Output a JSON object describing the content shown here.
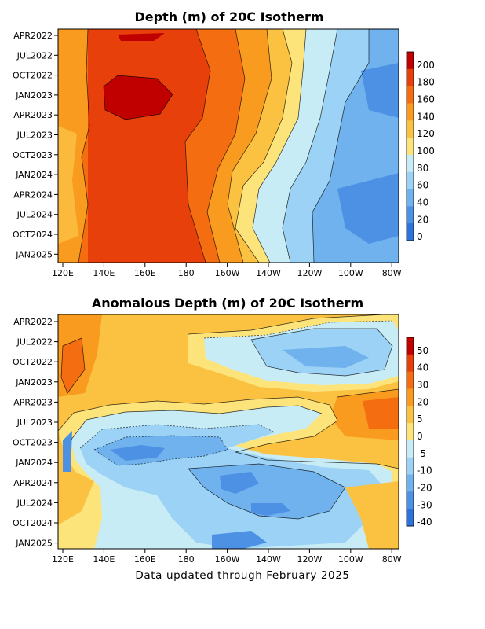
{
  "chart_data": [
    {
      "type": "heatmap",
      "title": "Depth (m) of 20C Isotherm",
      "xlabel": "",
      "ylabel": "",
      "x_ticks": [
        "120E",
        "140E",
        "160E",
        "180",
        "160W",
        "140W",
        "120W",
        "100W",
        "80W"
      ],
      "y_ticks": [
        "APR2022",
        "JUL2022",
        "OCT2022",
        "JAN2023",
        "APR2023",
        "JUL2023",
        "OCT2023",
        "JAN2024",
        "APR2024",
        "JUL2024",
        "OCT2024",
        "JAN2025"
      ],
      "colorbar": {
        "labels": [
          "200",
          "180",
          "160",
          "140",
          "120",
          "100",
          "80",
          "60",
          "40",
          "20",
          "0"
        ],
        "colors": [
          "#c00000",
          "#e8400a",
          "#f46d10",
          "#f99b1e",
          "#fbc242",
          "#fde47a",
          "#c8ecf6",
          "#9bd2f5",
          "#6fb2ee",
          "#4d91e4",
          "#2e72dc"
        ]
      },
      "legend_position": "right",
      "grid": false,
      "description_values": {
        "west_depth_m": [
          160,
          200
        ],
        "east_depth_m": [
          20,
          80
        ]
      }
    },
    {
      "type": "heatmap",
      "title": "Anomalous Depth (m) of 20C Isotherm",
      "xlabel": "",
      "ylabel": "",
      "x_ticks": [
        "120E",
        "140E",
        "160E",
        "180",
        "160W",
        "140W",
        "120W",
        "100W",
        "80W"
      ],
      "y_ticks": [
        "APR2022",
        "JUL2022",
        "OCT2022",
        "JAN2023",
        "APR2023",
        "JUL2023",
        "OCT2023",
        "JAN2024",
        "APR2024",
        "JUL2024",
        "OCT2024",
        "JAN2025"
      ],
      "colorbar": {
        "labels": [
          "50",
          "40",
          "30",
          "20",
          "5",
          "0",
          "-5",
          "-10",
          "-20",
          "-30",
          "-40"
        ],
        "colors": [
          "#c00000",
          "#e8400a",
          "#f46d10",
          "#f99b1e",
          "#fbc242",
          "#fde47a",
          "#c8ecf6",
          "#9bd2f5",
          "#6fb2ee",
          "#4d91e4",
          "#2e72dc"
        ]
      },
      "legend_position": "right",
      "grid": false,
      "description_values": {
        "positive_anomaly_range_m": [
          5,
          30
        ],
        "negative_anomaly_range_m": [
          -40,
          -5
        ]
      }
    }
  ],
  "footer": "Data updated through February 2025"
}
